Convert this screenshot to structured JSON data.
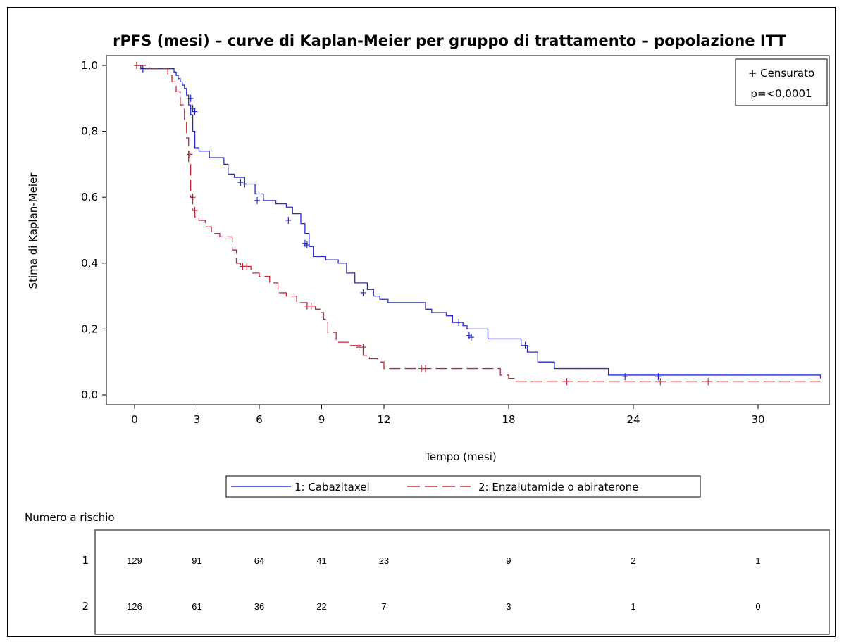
{
  "chart_data": {
    "type": "line",
    "title": "rPFS (mesi) – curve di Kaplan-Meier per gruppo di trattamento – popolazione ITT",
    "xlabel": "Tempo (mesi)",
    "ylabel": "Stima di Kaplan-Meier",
    "xlim": [
      0,
      33
    ],
    "ylim": [
      0,
      1
    ],
    "x_ticks": [
      0,
      3,
      6,
      9,
      12,
      18,
      24,
      30
    ],
    "y_ticks": [
      0.0,
      0.2,
      0.4,
      0.6,
      0.8,
      1.0
    ],
    "x_tick_labels": [
      "0",
      "3",
      "6",
      "9",
      "12",
      "18",
      "24",
      "30"
    ],
    "y_tick_labels": [
      "0,0",
      "0,2",
      "0,4",
      "0,6",
      "0,8",
      "1,0"
    ],
    "inset": {
      "censor_label": "+ Censurato",
      "p_value": "p=<0,0001"
    },
    "series": [
      {
        "name": "1: Cabazitaxel",
        "color": "#2a2ad6",
        "style": "solid",
        "x": [
          0.3,
          1.9,
          2.0,
          2.1,
          2.2,
          2.3,
          2.4,
          2.5,
          2.6,
          2.7,
          2.8,
          2.9,
          3.1,
          3.6,
          4.3,
          4.5,
          4.8,
          5.3,
          5.8,
          6.2,
          6.8,
          7.3,
          7.6,
          8.0,
          8.2,
          8.4,
          8.6,
          9.2,
          9.8,
          10.2,
          10.6,
          11.2,
          11.5,
          11.8,
          12.2,
          14.0,
          14.3,
          15.0,
          15.3,
          15.8,
          16.0,
          17.0,
          18.6,
          18.9,
          19.4,
          20.2,
          22.8,
          33.0
        ],
        "y": [
          0.99,
          0.98,
          0.97,
          0.96,
          0.95,
          0.94,
          0.93,
          0.91,
          0.88,
          0.85,
          0.8,
          0.75,
          0.74,
          0.72,
          0.7,
          0.67,
          0.66,
          0.64,
          0.61,
          0.59,
          0.58,
          0.57,
          0.55,
          0.52,
          0.49,
          0.45,
          0.42,
          0.41,
          0.4,
          0.37,
          0.34,
          0.32,
          0.3,
          0.29,
          0.28,
          0.26,
          0.25,
          0.24,
          0.22,
          0.21,
          0.2,
          0.17,
          0.15,
          0.13,
          0.1,
          0.08,
          0.06,
          0.05
        ],
        "censored_x": [
          0.4,
          2.7,
          2.8,
          2.9,
          5.1,
          5.3,
          5.9,
          7.4,
          8.2,
          8.3,
          11.0,
          15.6,
          16.1,
          16.2,
          18.8,
          23.6,
          25.2
        ],
        "censored_y": [
          0.99,
          0.9,
          0.87,
          0.86,
          0.645,
          0.64,
          0.59,
          0.53,
          0.46,
          0.455,
          0.31,
          0.22,
          0.18,
          0.175,
          0.15,
          0.055,
          0.055
        ]
      },
      {
        "name": "2: Enzalutamide o abiraterone",
        "color": "#c0283a",
        "style": "dashed",
        "x": [
          0.7,
          1.6,
          1.8,
          2.0,
          2.2,
          2.4,
          2.5,
          2.6,
          2.7,
          2.8,
          2.9,
          3.1,
          3.4,
          3.7,
          4.1,
          4.7,
          4.9,
          5.1,
          5.6,
          6.0,
          6.5,
          6.9,
          7.3,
          7.8,
          8.3,
          8.7,
          9.0,
          9.1,
          9.3,
          9.7,
          10.4,
          11.0,
          11.3,
          11.7,
          12.0,
          17.3,
          17.6,
          18.0,
          18.3,
          33.0
        ],
        "y": [
          0.99,
          0.97,
          0.95,
          0.92,
          0.88,
          0.83,
          0.78,
          0.7,
          0.6,
          0.56,
          0.54,
          0.53,
          0.51,
          0.49,
          0.48,
          0.44,
          0.4,
          0.39,
          0.37,
          0.36,
          0.34,
          0.31,
          0.3,
          0.28,
          0.27,
          0.26,
          0.25,
          0.23,
          0.19,
          0.16,
          0.15,
          0.12,
          0.11,
          0.1,
          0.08,
          0.08,
          0.06,
          0.05,
          0.04,
          0.04
        ],
        "censored_x": [
          0.1,
          2.65,
          2.8,
          2.9,
          5.2,
          5.4,
          8.3,
          8.5,
          10.8,
          11.0,
          13.8,
          14.0,
          20.8,
          25.3,
          27.6
        ],
        "censored_y": [
          1.0,
          0.73,
          0.6,
          0.56,
          0.39,
          0.39,
          0.27,
          0.27,
          0.145,
          0.145,
          0.08,
          0.08,
          0.04,
          0.04,
          0.04
        ]
      }
    ],
    "legend": {
      "placement": "bottom",
      "entries": [
        "1: Cabazitaxel",
        "2: Enzalutamide o abiraterone"
      ]
    },
    "risk_table": {
      "title": "Numero a rischio",
      "times": [
        0,
        3,
        6,
        9,
        12,
        18,
        24,
        30
      ],
      "rows": [
        {
          "label": "1",
          "values": [
            "129",
            "91",
            "64",
            "41",
            "23",
            "9",
            "2",
            "1"
          ]
        },
        {
          "label": "2",
          "values": [
            "126",
            "61",
            "36",
            "22",
            "7",
            "3",
            "1",
            "0"
          ]
        }
      ]
    }
  }
}
